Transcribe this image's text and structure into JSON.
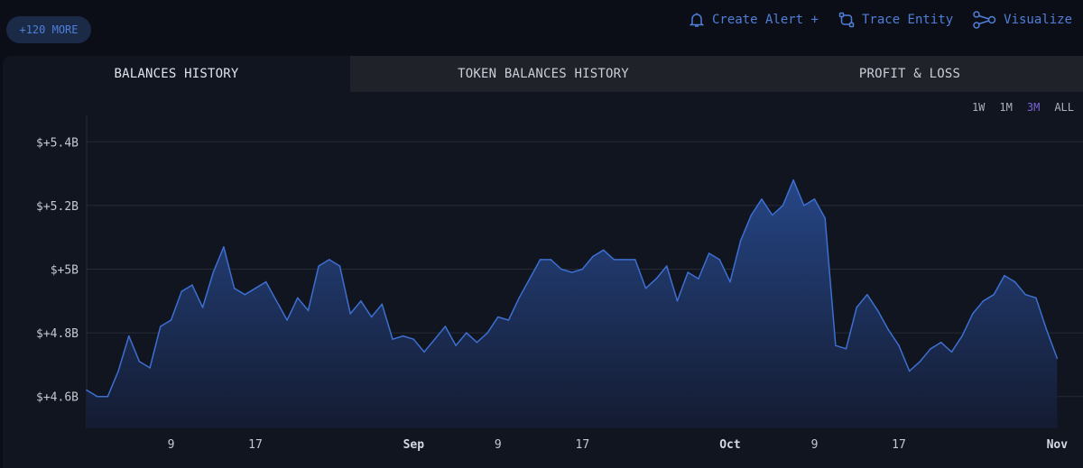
{
  "more_pill": "+120 MORE",
  "actions": [
    {
      "label": "Create Alert +",
      "icon": "bell-icon"
    },
    {
      "label": "Trace Entity",
      "icon": "trace-icon"
    },
    {
      "label": "Visualize",
      "icon": "graph-icon"
    }
  ],
  "tabs": [
    {
      "label": "BALANCES HISTORY",
      "active": true
    },
    {
      "label": "TOKEN BALANCES HISTORY",
      "active": false
    },
    {
      "label": "PROFIT & LOSS",
      "active": false
    }
  ],
  "ranges": [
    {
      "label": "1W",
      "active": false
    },
    {
      "label": "1M",
      "active": false
    },
    {
      "label": "3M",
      "active": true
    },
    {
      "label": "ALL",
      "active": false
    }
  ],
  "colors": {
    "accent": "#4f7fd8",
    "line": "#3d6fd1",
    "active_range": "#7a63d6"
  },
  "chart_data": {
    "type": "area",
    "title": "",
    "xlabel": "",
    "ylabel": "",
    "ylim": [
      4.5,
      5.5
    ],
    "xlim": [
      "2024-08-01",
      "2024-11-02"
    ],
    "grid": true,
    "yticks": [
      {
        "value": 4.6,
        "label": "$+4.6B"
      },
      {
        "value": 4.8,
        "label": "$+4.8B"
      },
      {
        "value": 5.0,
        "label": "$+5B"
      },
      {
        "value": 5.2,
        "label": "$+5.2B"
      },
      {
        "value": 5.4,
        "label": "$+5.4B"
      }
    ],
    "xticks": [
      {
        "date": "2024-08-09",
        "label": "9",
        "bold": false
      },
      {
        "date": "2024-08-17",
        "label": "17",
        "bold": false
      },
      {
        "date": "2024-09-01",
        "label": "Sep",
        "bold": true
      },
      {
        "date": "2024-09-09",
        "label": "9",
        "bold": false
      },
      {
        "date": "2024-09-17",
        "label": "17",
        "bold": false
      },
      {
        "date": "2024-10-01",
        "label": "Oct",
        "bold": true
      },
      {
        "date": "2024-10-09",
        "label": "9",
        "bold": false
      },
      {
        "date": "2024-10-17",
        "label": "17",
        "bold": false
      },
      {
        "date": "2024-11-01",
        "label": "Nov",
        "bold": true
      }
    ],
    "series": [
      {
        "x": [
          "2024-08-01",
          "2024-08-02",
          "2024-08-03",
          "2024-08-04",
          "2024-08-05",
          "2024-08-06",
          "2024-08-07",
          "2024-08-08",
          "2024-08-09",
          "2024-08-10",
          "2024-08-11",
          "2024-08-12",
          "2024-08-13",
          "2024-08-14",
          "2024-08-15",
          "2024-08-16",
          "2024-08-17",
          "2024-08-18",
          "2024-08-19",
          "2024-08-20",
          "2024-08-21",
          "2024-08-22",
          "2024-08-23",
          "2024-08-24",
          "2024-08-25",
          "2024-08-26",
          "2024-08-27",
          "2024-08-28",
          "2024-08-29",
          "2024-08-30",
          "2024-08-31",
          "2024-09-01",
          "2024-09-02",
          "2024-09-03",
          "2024-09-04",
          "2024-09-05",
          "2024-09-06",
          "2024-09-07",
          "2024-09-08",
          "2024-09-09",
          "2024-09-10",
          "2024-09-11",
          "2024-09-12",
          "2024-09-13",
          "2024-09-14",
          "2024-09-15",
          "2024-09-16",
          "2024-09-17",
          "2024-09-18",
          "2024-09-19",
          "2024-09-20",
          "2024-09-21",
          "2024-09-22",
          "2024-09-23",
          "2024-09-24",
          "2024-09-25",
          "2024-09-26",
          "2024-09-27",
          "2024-09-28",
          "2024-09-29",
          "2024-09-30",
          "2024-10-01",
          "2024-10-02",
          "2024-10-03",
          "2024-10-04",
          "2024-10-05",
          "2024-10-06",
          "2024-10-07",
          "2024-10-08",
          "2024-10-09",
          "2024-10-10",
          "2024-10-11",
          "2024-10-12",
          "2024-10-13",
          "2024-10-14",
          "2024-10-15",
          "2024-10-16",
          "2024-10-17",
          "2024-10-18",
          "2024-10-19",
          "2024-10-20",
          "2024-10-21",
          "2024-10-22",
          "2024-10-23",
          "2024-10-24",
          "2024-10-25",
          "2024-10-26",
          "2024-10-27",
          "2024-10-28",
          "2024-10-29",
          "2024-10-30",
          "2024-10-31",
          "2024-11-01"
        ],
        "values": [
          4.62,
          4.6,
          4.6,
          4.68,
          4.79,
          4.71,
          4.69,
          4.82,
          4.84,
          4.93,
          4.95,
          4.88,
          4.99,
          5.07,
          4.94,
          4.92,
          4.94,
          4.96,
          4.9,
          4.84,
          4.91,
          4.87,
          5.01,
          5.03,
          5.01,
          4.86,
          4.9,
          4.85,
          4.89,
          4.78,
          4.79,
          4.78,
          4.74,
          4.78,
          4.82,
          4.76,
          4.8,
          4.77,
          4.8,
          4.85,
          4.84,
          4.91,
          4.97,
          5.03,
          5.03,
          5.0,
          4.99,
          5.0,
          5.04,
          5.06,
          5.03,
          5.03,
          5.03,
          4.94,
          4.97,
          5.01,
          4.9,
          4.99,
          4.97,
          5.05,
          5.03,
          4.96,
          5.09,
          5.17,
          5.22,
          5.17,
          5.2,
          5.28,
          5.2,
          5.22,
          5.16,
          4.76,
          4.75,
          4.88,
          4.92,
          4.87,
          4.81,
          4.76,
          4.68,
          4.71,
          4.75,
          4.77,
          4.74,
          4.79,
          4.86,
          4.9,
          4.92,
          4.98,
          4.96,
          4.92,
          4.91,
          4.81,
          4.72
        ]
      }
    ]
  }
}
